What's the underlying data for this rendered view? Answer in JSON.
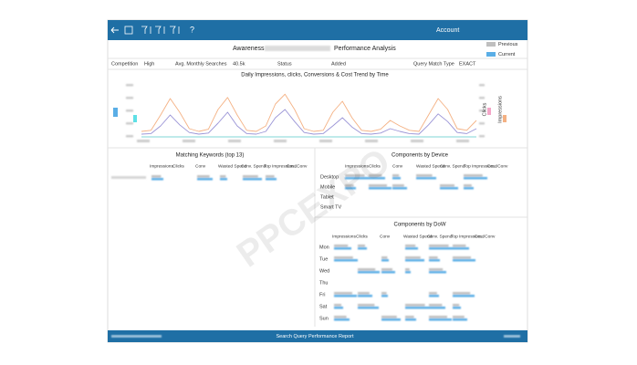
{
  "header": {
    "account": "Account",
    "help": "?"
  },
  "report": {
    "title_prefix": "Awareness",
    "title_suffix": "Performance Analysis",
    "legend": [
      "Previous",
      "Current"
    ]
  },
  "info": [
    [
      "Competition",
      "High"
    ],
    [
      "Avg. Monthly Searches",
      "40.5k"
    ],
    [
      "Status",
      "Added"
    ],
    [
      "Query Match Type",
      "EXACT"
    ]
  ],
  "trend": {
    "type": "line",
    "title": "Daily Impressions, clicks, Conversions & Cost Trend by Time",
    "ylim": [
      0,
      100
    ],
    "series": [
      {
        "name": "Impressions",
        "color": "#f4b183",
        "values": [
          10,
          12,
          40,
          70,
          45,
          15,
          10,
          14,
          50,
          72,
          40,
          12,
          10,
          20,
          60,
          78,
          50,
          15,
          10,
          12,
          45,
          65,
          35,
          12,
          10,
          14,
          30,
          20,
          12,
          10,
          40,
          70,
          50,
          15,
          12,
          30
        ]
      },
      {
        "name": "Clicks",
        "color": "#9a94d6",
        "values": [
          5,
          6,
          20,
          40,
          22,
          8,
          5,
          7,
          25,
          45,
          20,
          6,
          5,
          10,
          35,
          50,
          28,
          8,
          5,
          6,
          20,
          35,
          18,
          6,
          5,
          7,
          15,
          10,
          6,
          5,
          22,
          42,
          28,
          8,
          6,
          15
        ]
      }
    ]
  },
  "keywords": {
    "title": "Matching Keywords (top 13)",
    "columns": [
      "Impressions",
      "Clicks",
      "Conv",
      "Wasted Spend",
      "Conv. Spend",
      "Top Impression...",
      "Cost/Conv"
    ]
  },
  "device": {
    "title": "Components by Device",
    "columns": [
      "Impressions",
      "Clicks",
      "Conv",
      "Wasted Spend",
      "Conv. Spend",
      "Top Impression...",
      "Cost/Conv"
    ],
    "rows": [
      "Desktop",
      "Mobile",
      "Tablet",
      "Smart TV"
    ]
  },
  "dow": {
    "title": "Components by DoW",
    "columns": [
      "Impressions",
      "Clicks",
      "Conv",
      "Wasted Spend",
      "Conv. Spend",
      "Top Impression...",
      "Cost/Conv"
    ],
    "rows": [
      "Mon",
      "Tue",
      "Wed",
      "Thu",
      "Fri",
      "Sat",
      "Sun"
    ]
  },
  "footer": {
    "title": "Search Query Performance Report"
  },
  "watermark": "PPCEXPO"
}
